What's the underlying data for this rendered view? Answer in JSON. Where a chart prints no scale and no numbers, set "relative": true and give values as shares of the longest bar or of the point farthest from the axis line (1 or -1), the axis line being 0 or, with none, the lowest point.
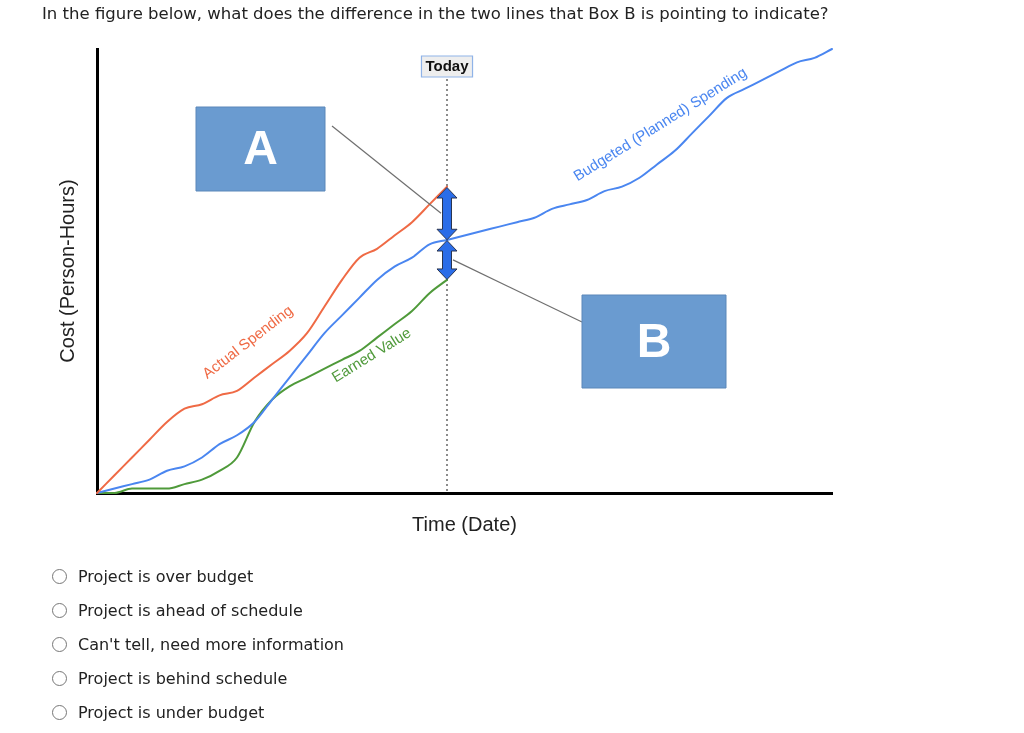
{
  "chart_data": {
    "type": "line",
    "title": "In the figure below, what does the difference in the two lines that Box B is pointing to indicate?",
    "xlabel": "Time (Date)",
    "ylabel": "Cost (Person-Hours)",
    "categories": [
      null,
      null,
      null,
      null,
      null,
      null,
      null,
      null,
      null,
      null,
      null,
      null,
      null,
      null,
      null,
      null,
      null,
      null,
      null,
      null,
      null,
      null,
      null,
      null,
      null,
      null,
      null,
      null,
      null,
      null,
      null,
      null,
      null,
      null,
      null,
      null,
      null,
      null,
      null,
      null,
      null,
      null,
      null
    ],
    "series": [
      {
        "name": "Actual Spending",
        "color": "#ef6a45",
        "values": [
          0,
          0.04,
          0.08,
          0.12,
          0.16,
          0.19,
          0.2,
          0.22,
          0.23,
          0.26,
          0.29,
          0.32,
          0.36,
          0.42,
          0.48,
          0.53,
          0.55,
          0.58,
          0.61,
          0.65,
          0.69,
          null,
          null,
          null,
          null,
          null,
          null,
          null,
          null,
          null,
          null,
          null,
          null,
          null,
          null,
          null,
          null,
          null,
          null,
          null,
          null,
          null,
          null
        ]
      },
      {
        "name": "Budgeted (Planned) Spending",
        "color": "#4a86f0",
        "values": [
          0,
          0.01,
          0.02,
          0.03,
          0.05,
          0.06,
          0.08,
          0.11,
          0.13,
          0.16,
          0.21,
          0.26,
          0.31,
          0.36,
          0.4,
          0.44,
          0.48,
          0.51,
          0.53,
          0.56,
          0.57,
          0.58,
          0.59,
          0.6,
          0.61,
          0.62,
          0.64,
          0.65,
          0.66,
          0.68,
          0.69,
          0.71,
          0.74,
          0.77,
          0.81,
          0.85,
          0.89,
          0.91,
          0.93,
          0.95,
          0.97,
          0.98,
          1
        ]
      },
      {
        "name": "Earned Value",
        "color": "#4f9a3a",
        "values": [
          0,
          0,
          0.01,
          0.01,
          0.01,
          0.02,
          0.03,
          0.05,
          0.08,
          0.16,
          0.21,
          0.24,
          0.26,
          0.28,
          0.3,
          0.32,
          0.35,
          0.38,
          0.41,
          0.45,
          0.48,
          null,
          null,
          null,
          null,
          null,
          null,
          null,
          null,
          null,
          null,
          null,
          null,
          null,
          null,
          null,
          null,
          null,
          null,
          null,
          null,
          null,
          null
        ]
      }
    ],
    "relative": true,
    "annotations": [
      "Today",
      "A",
      "B",
      "Project is over budget",
      "Project is ahead of schedule",
      "Can't tell, need more information",
      "Project is behind schedule",
      "Project is under budget"
    ],
    "grid": false,
    "legend": false,
    "marker": "none"
  }
}
